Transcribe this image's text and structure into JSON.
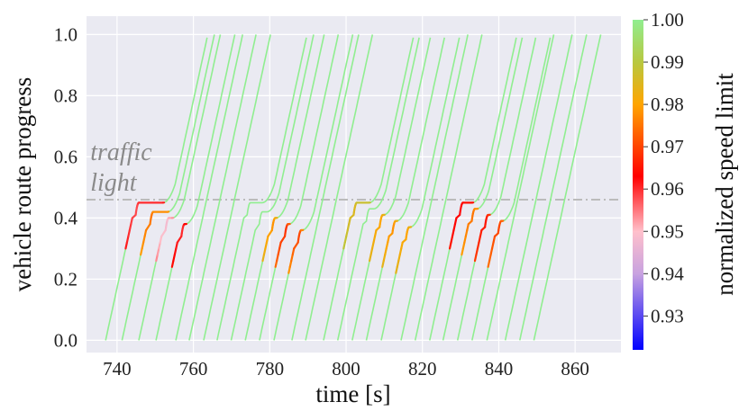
{
  "chart_data": {
    "type": "line",
    "title": "",
    "xlabel": "time [s]",
    "ylabel": "vehicle route progress",
    "xlim": [
      732,
      872
    ],
    "ylim": [
      -0.04,
      1.06
    ],
    "xticks": [
      "740",
      "760",
      "780",
      "800",
      "820",
      "840",
      "860"
    ],
    "yticks": [
      "0.0",
      "0.2",
      "0.4",
      "0.6",
      "0.8",
      "1.0"
    ],
    "grid": true,
    "background": "#eaeaf2",
    "annotation": {
      "text_line1": "traffic",
      "text_line2": "light",
      "x": 733,
      "y": 0.46
    },
    "traffic_light_y": 0.46,
    "colorbar": {
      "label": "normalized speed limit",
      "min": 0.922,
      "max": 1.0,
      "ticks": [
        "1.00",
        "0.99",
        "0.98",
        "0.97",
        "0.96",
        "0.95",
        "0.94",
        "0.93"
      ],
      "tick_values": [
        1.0,
        0.99,
        0.98,
        0.97,
        0.96,
        0.95,
        0.94,
        0.93
      ],
      "colormap_stops": [
        {
          "v": 0.922,
          "c": "#0000ff"
        },
        {
          "v": 0.94,
          "c": "#c8a2e0"
        },
        {
          "v": 0.95,
          "c": "#ffc0cb"
        },
        {
          "v": 0.963,
          "c": "#ff0000"
        },
        {
          "v": 0.98,
          "c": "#ffa500"
        },
        {
          "v": 0.99,
          "c": "#b8c840"
        },
        {
          "v": 1.0,
          "c": "#90ee90"
        }
      ]
    },
    "cycles": [
      {
        "green_start": 752,
        "vehicles": [
          {
            "t0": 737.0,
            "stop_y": 0.45,
            "slow": [
              0.958,
              0.962
            ]
          },
          {
            "t0": 741.3,
            "stop_y": 0.42,
            "slow": [
              0.975,
              0.98
            ]
          },
          {
            "t0": 745.7,
            "stop_y": 0.4,
            "slow": [
              0.948,
              0.955
            ]
          },
          {
            "t0": 750.2,
            "stop_y": 0.38,
            "slow": [
              0.96,
              0.965
            ]
          },
          {
            "t0": 755.4,
            "stop_y": null,
            "slow": null
          },
          {
            "t0": 758.9,
            "stop_y": null,
            "slow": null
          },
          {
            "t0": 762.7,
            "stop_y": null,
            "slow": null
          }
        ]
      },
      {
        "green_start": 778,
        "vehicles": [
          {
            "t0": 766.2,
            "stop_y": 0.45,
            "slow": null
          },
          {
            "t0": 769.9,
            "stop_y": 0.42,
            "slow": null
          },
          {
            "t0": 773.6,
            "stop_y": 0.4,
            "slow": [
              0.978,
              0.985
            ]
          },
          {
            "t0": 777.3,
            "stop_y": 0.38,
            "slow": [
              0.968,
              0.975
            ]
          },
          {
            "t0": 781.1,
            "stop_y": 0.36,
            "slow": [
              0.97,
              0.98
            ]
          },
          {
            "t0": 785.8,
            "stop_y": null,
            "slow": null
          },
          {
            "t0": 789.4,
            "stop_y": null,
            "slow": null
          }
        ]
      },
      {
        "green_start": 806,
        "vehicles": [
          {
            "t0": 794.1,
            "stop_y": 0.45,
            "slow": [
              0.985,
              0.99
            ]
          },
          {
            "t0": 797.8,
            "stop_y": 0.43,
            "slow": null
          },
          {
            "t0": 801.6,
            "stop_y": 0.41,
            "slow": [
              0.98,
              0.985
            ]
          },
          {
            "t0": 805.3,
            "stop_y": 0.39,
            "slow": [
              0.978,
              0.985
            ]
          },
          {
            "t0": 809.2,
            "stop_y": 0.37,
            "slow": [
              0.98,
              0.985
            ]
          },
          {
            "t0": 814.4,
            "stop_y": null,
            "slow": null
          },
          {
            "t0": 818.1,
            "stop_y": null,
            "slow": null
          }
        ]
      },
      {
        "green_start": 833,
        "vehicles": [
          {
            "t0": 821.9,
            "stop_y": 0.45,
            "slow": [
              0.962,
              0.966
            ]
          },
          {
            "t0": 825.4,
            "stop_y": 0.43,
            "slow": [
              0.975,
              0.98
            ]
          },
          {
            "t0": 829.2,
            "stop_y": 0.41,
            "slow": [
              0.965,
              0.97
            ]
          },
          {
            "t0": 833.0,
            "stop_y": 0.39,
            "slow": [
              0.97,
              0.975
            ]
          },
          {
            "t0": 836.9,
            "stop_y": null,
            "slow": null
          },
          {
            "t0": 841.7,
            "stop_y": null,
            "slow": null
          },
          {
            "t0": 845.5,
            "stop_y": null,
            "slow": null
          },
          {
            "t0": 849.2,
            "stop_y": null,
            "slow": null
          }
        ]
      }
    ]
  }
}
